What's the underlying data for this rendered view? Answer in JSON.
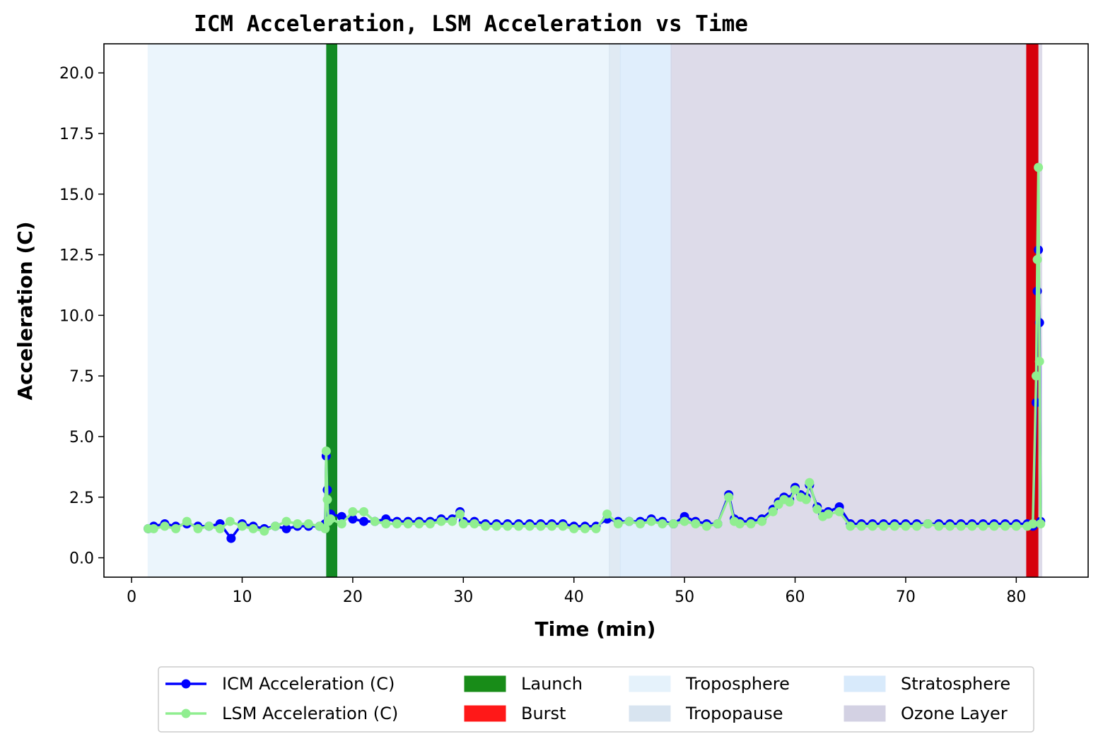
{
  "chart_data": {
    "type": "line",
    "title": "ICM Acceleration, LSM Acceleration vs Time",
    "xlabel": "Time (min)",
    "ylabel": "Acceleration (C)",
    "xlim": [
      -2.5,
      86.5
    ],
    "ylim": [
      -0.8,
      21.2
    ],
    "xticks": [
      0,
      10,
      20,
      30,
      40,
      50,
      60,
      70,
      80
    ],
    "yticks": [
      0.0,
      2.5,
      5.0,
      7.5,
      10.0,
      12.5,
      15.0,
      17.5,
      20.0
    ],
    "ytick_labels": [
      "0.0",
      "2.5",
      "5.0",
      "7.5",
      "10.0",
      "12.5",
      "15.0",
      "17.5",
      "20.0"
    ],
    "grid": false,
    "legend_position": "bottom-center",
    "regions": [
      {
        "name": "Troposphere",
        "x": [
          1.5,
          43.2
        ],
        "color": "#e3f1fb"
      },
      {
        "name": "Tropopause",
        "x": [
          43.2,
          44.2
        ],
        "color": "#d4e2ef"
      },
      {
        "name": "Stratosphere",
        "x": [
          44.2,
          48.8
        ],
        "color": "#d4e8fb"
      },
      {
        "name": "Ozone Layer",
        "x": [
          48.8,
          82.3
        ],
        "color": "#cfcde0"
      }
    ],
    "events": [
      {
        "name": "Launch",
        "x": [
          17.6,
          18.6
        ],
        "color": "#138a24"
      },
      {
        "name": "Burst",
        "x": [
          80.9,
          82.0
        ],
        "color": "#d6000c"
      }
    ],
    "series": [
      {
        "name": "ICM Acceleration (C)",
        "color": "#0000ff",
        "x": [
          1.5,
          2,
          3,
          4,
          5,
          6,
          7,
          8,
          9,
          10,
          11,
          12,
          13,
          14,
          15,
          16,
          17,
          17.5,
          17.6,
          17.7,
          17.8,
          18,
          19,
          20,
          21,
          22,
          23,
          24,
          25,
          26,
          27,
          28,
          29,
          29.7,
          30,
          31,
          32,
          33,
          34,
          35,
          36,
          37,
          38,
          39,
          40,
          41,
          42,
          43,
          44,
          45,
          46,
          47,
          48,
          49,
          50,
          51,
          52,
          53,
          54,
          54.5,
          55,
          56,
          57,
          58,
          58.5,
          59,
          59.5,
          60,
          60.5,
          61,
          61.3,
          62,
          62.5,
          63,
          64,
          65,
          66,
          67,
          68,
          69,
          70,
          71,
          72,
          73,
          74,
          75,
          76,
          77,
          78,
          79,
          80,
          81,
          81.5,
          81.8,
          81.9,
          82.0,
          82.1,
          82.2
        ],
        "y": [
          1.2,
          1.3,
          1.4,
          1.3,
          1.4,
          1.3,
          1.3,
          1.4,
          0.8,
          1.4,
          1.3,
          1.2,
          1.3,
          1.2,
          1.3,
          1.3,
          1.3,
          1.4,
          4.2,
          2.8,
          1.6,
          1.8,
          1.7,
          1.6,
          1.5,
          1.5,
          1.6,
          1.5,
          1.5,
          1.5,
          1.5,
          1.6,
          1.6,
          1.9,
          1.5,
          1.5,
          1.4,
          1.4,
          1.4,
          1.4,
          1.4,
          1.4,
          1.4,
          1.4,
          1.3,
          1.3,
          1.3,
          1.6,
          1.5,
          1.5,
          1.5,
          1.6,
          1.5,
          1.4,
          1.7,
          1.5,
          1.4,
          1.4,
          2.6,
          1.6,
          1.5,
          1.5,
          1.6,
          2.0,
          2.3,
          2.5,
          2.4,
          2.9,
          2.6,
          2.5,
          3.0,
          2.1,
          1.8,
          1.9,
          2.1,
          1.4,
          1.4,
          1.4,
          1.4,
          1.4,
          1.4,
          1.4,
          1.4,
          1.4,
          1.4,
          1.4,
          1.4,
          1.4,
          1.4,
          1.4,
          1.4,
          1.4,
          1.3,
          6.4,
          11.0,
          12.7,
          9.7,
          1.5
        ]
      },
      {
        "name": "LSM Acceleration (C)",
        "color": "#90ee90",
        "x": [
          1.5,
          2,
          3,
          4,
          5,
          6,
          7,
          8,
          8.9,
          10,
          11,
          12,
          13,
          14,
          15,
          16,
          17,
          17.5,
          17.6,
          17.7,
          17.8,
          18,
          19,
          20,
          21,
          22,
          23,
          24,
          25,
          26,
          27,
          28,
          29,
          29.7,
          30,
          31,
          32,
          33,
          34,
          35,
          36,
          37,
          38,
          39,
          40,
          41,
          42,
          43,
          44,
          45,
          46,
          47,
          48,
          49,
          50,
          51,
          52,
          53,
          54,
          54.5,
          55,
          56,
          57,
          58,
          58.5,
          59,
          59.5,
          60,
          60.5,
          61,
          61.3,
          62,
          62.5,
          63,
          64,
          65,
          66,
          67,
          68,
          69,
          70,
          71,
          72,
          73,
          74,
          75,
          76,
          77,
          78,
          79,
          80,
          81,
          81.5,
          81.8,
          81.9,
          82.0,
          82.1,
          82.2
        ],
        "y": [
          1.2,
          1.2,
          1.3,
          1.2,
          1.5,
          1.2,
          1.3,
          1.2,
          1.5,
          1.3,
          1.2,
          1.1,
          1.3,
          1.5,
          1.4,
          1.4,
          1.3,
          1.2,
          4.4,
          2.4,
          1.5,
          1.6,
          1.4,
          1.9,
          1.9,
          1.5,
          1.4,
          1.4,
          1.4,
          1.4,
          1.4,
          1.5,
          1.5,
          1.8,
          1.4,
          1.4,
          1.3,
          1.3,
          1.3,
          1.3,
          1.3,
          1.3,
          1.3,
          1.3,
          1.2,
          1.2,
          1.2,
          1.8,
          1.4,
          1.5,
          1.4,
          1.5,
          1.4,
          1.4,
          1.5,
          1.4,
          1.3,
          1.4,
          2.5,
          1.5,
          1.4,
          1.4,
          1.5,
          1.9,
          2.2,
          2.4,
          2.3,
          2.8,
          2.5,
          2.4,
          3.1,
          2.0,
          1.7,
          1.8,
          1.9,
          1.3,
          1.3,
          1.3,
          1.3,
          1.3,
          1.3,
          1.3,
          1.4,
          1.3,
          1.3,
          1.3,
          1.3,
          1.3,
          1.3,
          1.3,
          1.3,
          1.3,
          1.4,
          7.5,
          12.3,
          16.1,
          8.1,
          1.4
        ]
      }
    ],
    "legend": [
      {
        "label": "ICM Acceleration (C)",
        "kind": "line",
        "color": "#0000ff"
      },
      {
        "label": "LSM Acceleration (C)",
        "kind": "line",
        "color": "#90ee90"
      },
      {
        "label": "Launch",
        "kind": "patch",
        "color": "#008000"
      },
      {
        "label": "Burst",
        "kind": "patch",
        "color": "#ff0000"
      },
      {
        "label": "Troposphere",
        "kind": "patch",
        "color": "#e3f1fb"
      },
      {
        "label": "Tropopause",
        "kind": "patch",
        "color": "#d4e2ef"
      },
      {
        "label": "Stratosphere",
        "kind": "patch",
        "color": "#d4e8fb"
      },
      {
        "label": "Ozone Layer",
        "kind": "patch",
        "color": "#cfcde0"
      }
    ]
  }
}
